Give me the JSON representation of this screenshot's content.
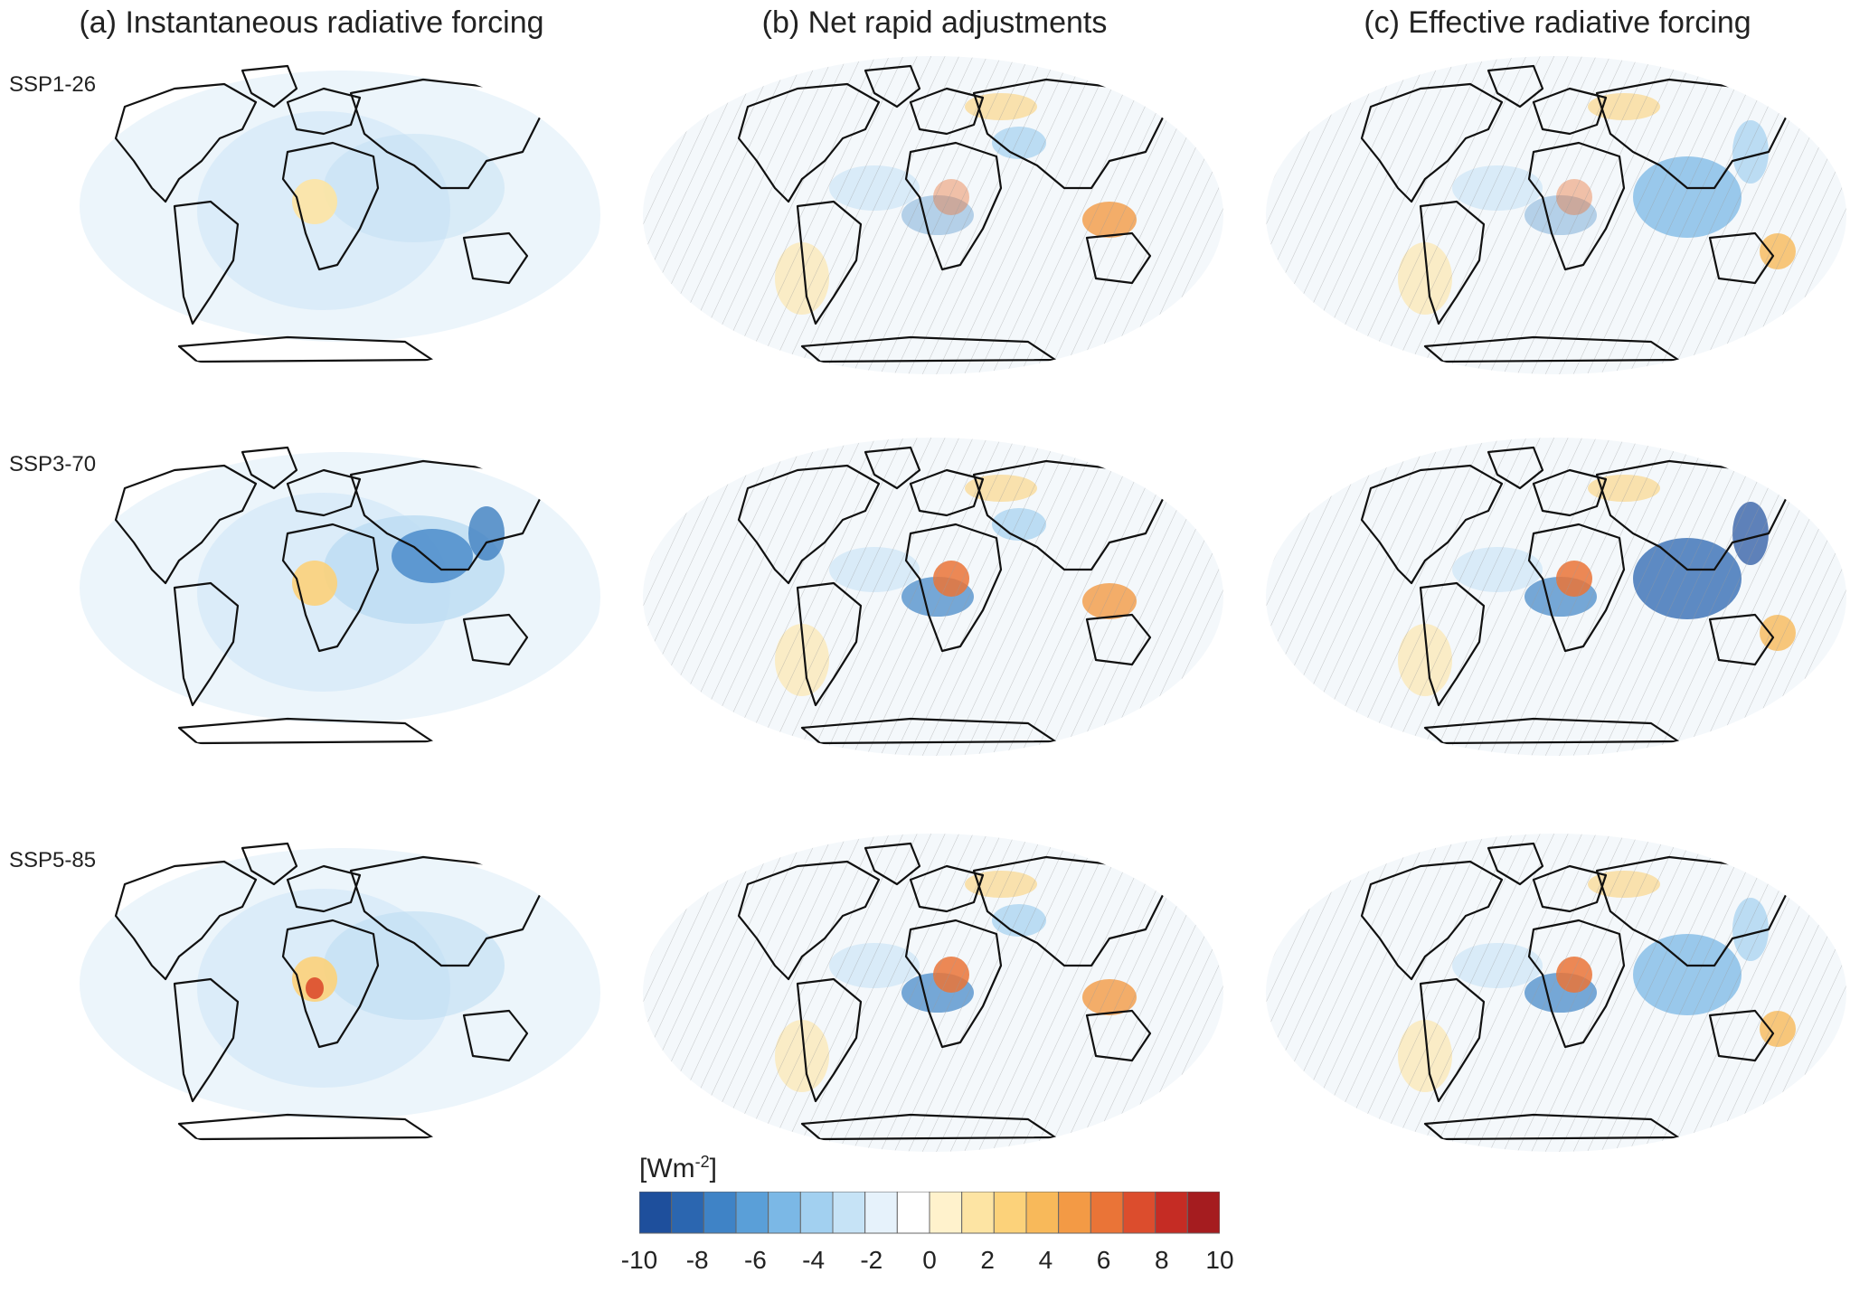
{
  "panels": [
    {
      "id": "a",
      "title": "(a) Instantaneous radiative forcing"
    },
    {
      "id": "b",
      "title": "(b) Net rapid adjustments"
    },
    {
      "id": "c",
      "title": "(c) Effective radiative forcing"
    }
  ],
  "scenarios": [
    "SSP1-26",
    "SSP3-70",
    "SSP5-85"
  ],
  "colorbar": {
    "unit_base": "[Wm",
    "unit_exp": "-2",
    "unit_close": "]",
    "range": [
      -10,
      10
    ],
    "ticks": [
      "-10",
      "-8",
      "-6",
      "-4",
      "-2",
      "0",
      "2",
      "4",
      "6",
      "8",
      "10"
    ],
    "colors": [
      "#1e4f9c",
      "#2b66b0",
      "#3f83c6",
      "#5a9fd8",
      "#7bb8e6",
      "#a2d0f0",
      "#c6e3f6",
      "#e6f2fb",
      "#ffffff",
      "#fff2cc",
      "#fde4a3",
      "#fcd27a",
      "#f8b95a",
      "#f39a45",
      "#ea7437",
      "#dc4d2d",
      "#c52c24",
      "#a51c1f"
    ]
  },
  "chart_data": {
    "type": "heatmap",
    "map_projection": "Robinson (global)",
    "hatching": "panels (b) and (c) hatched where not significant",
    "rows": [
      "SSP1-26",
      "SSP3-70",
      "SSP5-85"
    ],
    "columns": [
      "(a) Instantaneous radiative forcing",
      "(b) Net rapid adjustments",
      "(c) Effective radiative forcing"
    ],
    "color_scale": {
      "min": -10,
      "max": 10,
      "units": "Wm-2",
      "diverging": true
    }
  }
}
